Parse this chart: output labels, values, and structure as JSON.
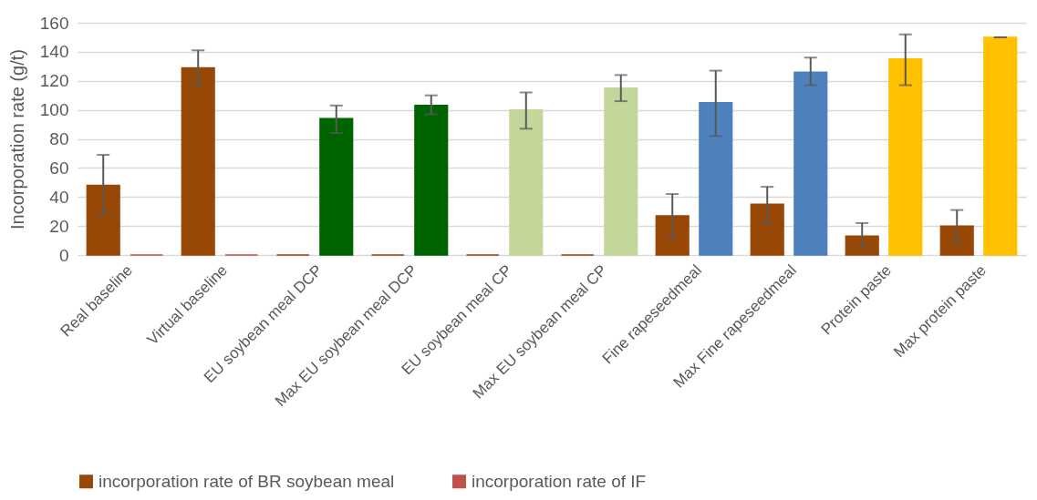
{
  "chart_data": {
    "type": "bar",
    "ylabel": "Incorporation rate (g/t)",
    "categories": [
      "Real baseline",
      "Virtual baseline",
      "EU soybean meal DCP",
      "Max EU soybean meal DCP",
      "EU soybean meal CP",
      "Max EU soybean meal CP",
      "Fine rapeseedmeal",
      "Max Fine rapeseedmeal",
      "Protein paste",
      "Max protein paste"
    ],
    "series": [
      {
        "name": "incorporation rate of BR soybean meal",
        "color": "#974706",
        "values": [
          48,
          129,
          0,
          0,
          0,
          0,
          27,
          35,
          13,
          20
        ],
        "errors": [
          [
            28,
            69
          ],
          [
            117,
            141
          ],
          null,
          null,
          null,
          null,
          [
            12,
            42
          ],
          [
            22,
            47
          ],
          [
            5,
            22
          ],
          [
            9,
            31
          ]
        ]
      },
      {
        "name": "incorporation rate of IF",
        "color": "#c0504d",
        "colors": [
          "#c0504d",
          "#c0504d",
          "#006400",
          "#006400",
          "#c4d79b",
          "#c4d79b",
          "#4f81bd",
          "#4f81bd",
          "#ffc000",
          "#ffc000"
        ],
        "values": [
          0,
          0,
          94,
          103,
          100,
          115,
          105,
          126,
          135,
          150
        ],
        "errors": [
          null,
          null,
          [
            84,
            103
          ],
          [
            97,
            110
          ],
          [
            87,
            112
          ],
          [
            106,
            124
          ],
          [
            82,
            127
          ],
          [
            117,
            136
          ],
          [
            117,
            152
          ],
          [
            150,
            150
          ]
        ]
      }
    ],
    "ylim": [
      0,
      160
    ],
    "yticks": [
      0,
      20,
      40,
      60,
      80,
      100,
      120,
      140,
      160
    ],
    "grid": "y",
    "legend": "bottom"
  }
}
